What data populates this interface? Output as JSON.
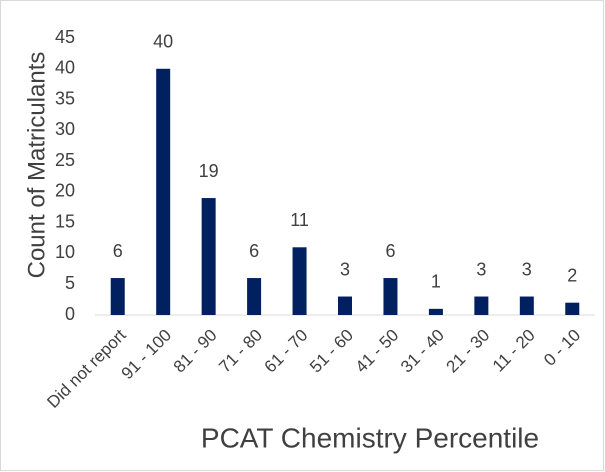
{
  "chart_data": {
    "type": "bar",
    "x_label": "PCAT Chemistry Percentile",
    "y_label": "Count of Matriculants",
    "categories": [
      "Did not report",
      "91 - 100",
      "81 - 90",
      "71 - 80",
      "61 - 70",
      "51 - 60",
      "41 - 50",
      "31 - 40",
      "21 - 30",
      "11 - 20",
      "0 - 10"
    ],
    "values": [
      6,
      40,
      19,
      6,
      11,
      3,
      6,
      1,
      3,
      3,
      2
    ],
    "color": "#002060",
    "ylim": [
      0,
      45
    ],
    "yticks": [
      0,
      5,
      10,
      15,
      20,
      25,
      30,
      35,
      40,
      45
    ],
    "grid": false
  }
}
